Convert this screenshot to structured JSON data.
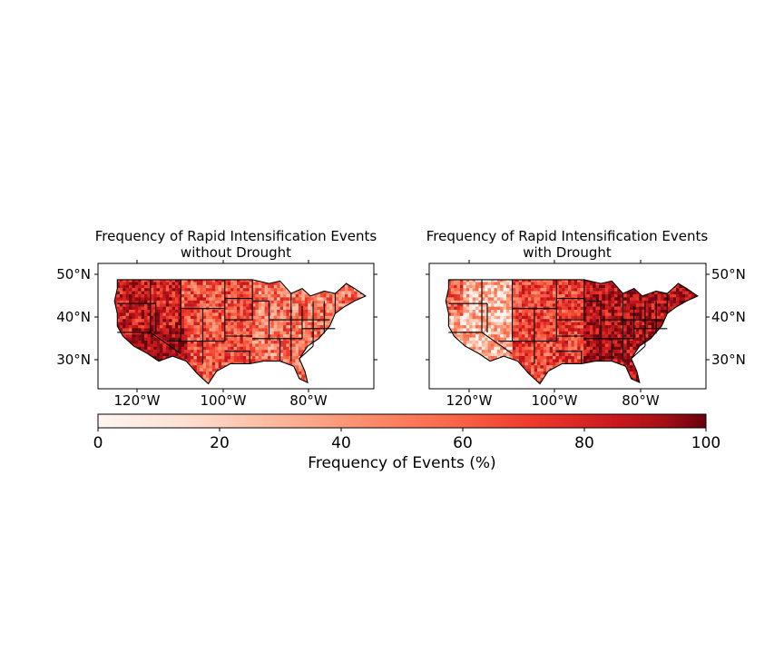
{
  "panels": [
    {
      "title_line1": "Frequency of Rapid Intensification Events",
      "title_line2": "without Drought",
      "lat_ticks": [
        "50°N",
        "40°N",
        "30°N"
      ],
      "lon_ticks": [
        "120°W",
        "100°W",
        "80°W"
      ],
      "lat_label_side": "left",
      "pattern": "west-high"
    },
    {
      "title_line1": "Frequency of Rapid Intensification Events",
      "title_line2": "with Drought",
      "lat_ticks": [
        "50°N",
        "40°N",
        "30°N"
      ],
      "lon_ticks": [
        "120°W",
        "100°W",
        "80°W"
      ],
      "lat_label_side": "right",
      "pattern": "east-high"
    }
  ],
  "colorbar": {
    "label": "Frequency of Events (%)",
    "ticks": [
      "0",
      "20",
      "40",
      "60",
      "80",
      "100"
    ],
    "range": [
      0,
      100
    ],
    "colormap": "Reds",
    "colors": [
      "#fff5f0",
      "#fcbba1",
      "#fc9272",
      "#fb6a4a",
      "#ef3b2c",
      "#cb181d",
      "#a50f15",
      "#67000d"
    ]
  }
}
